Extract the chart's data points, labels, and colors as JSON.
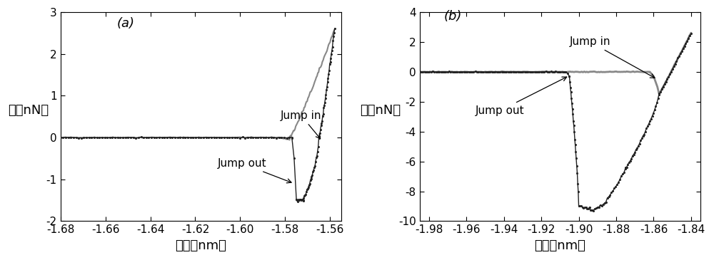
{
  "panel_a": {
    "label": "(a)",
    "xlim": [
      -1.68,
      -1.555
    ],
    "ylim": [
      -2,
      3
    ],
    "xticks": [
      -1.68,
      -1.66,
      -1.64,
      -1.62,
      -1.6,
      -1.58,
      -1.56
    ],
    "yticks": [
      -2,
      -1,
      0,
      1,
      2,
      3
    ],
    "xlabel": "距离（nm）",
    "ylabel": "力（nN）",
    "jump_in_label": "Jump in",
    "jump_out_label": "Jump out"
  },
  "panel_b": {
    "label": "(b)",
    "xlim": [
      -1.985,
      -1.835
    ],
    "ylim": [
      -10,
      4
    ],
    "xticks": [
      -1.98,
      -1.96,
      -1.94,
      -1.92,
      -1.9,
      -1.88,
      -1.86,
      -1.84
    ],
    "yticks": [
      -10,
      -8,
      -6,
      -4,
      -2,
      0,
      2,
      4
    ],
    "xlabel": "距离（nm）",
    "ylabel": "力（nN）",
    "jump_in_label": "Jump in",
    "jump_out_label": "Jump out"
  },
  "approach_color": "#888888",
  "retract_color": "#222222",
  "background_color": "#ffffff",
  "font_size_label": 13,
  "font_size_tick": 11,
  "font_size_annotation": 11,
  "font_size_panel_label": 13
}
